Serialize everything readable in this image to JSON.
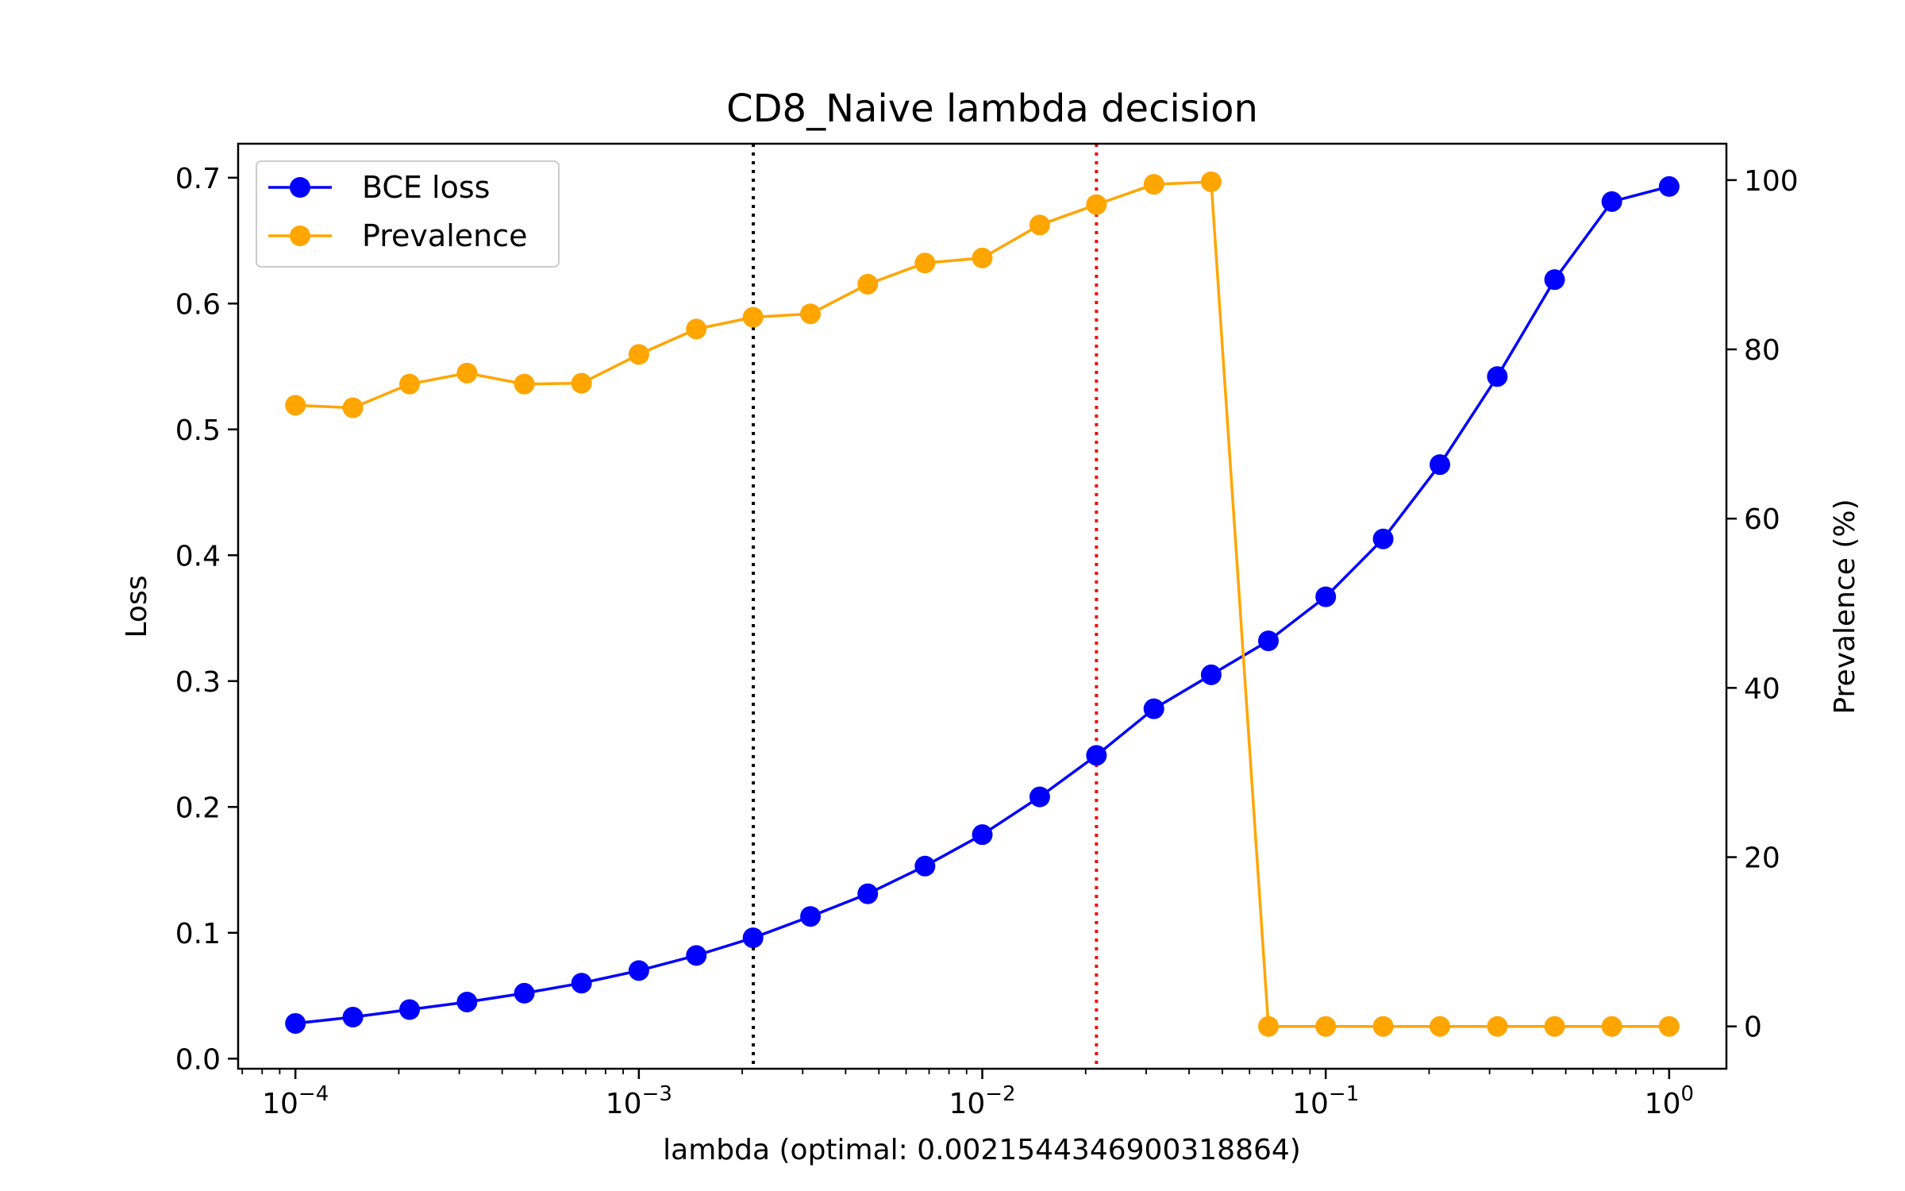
{
  "chart_data": {
    "type": "line",
    "title": "CD8_Naive lambda decision",
    "xlabel": "lambda (optimal: 0.0021544346900318864)",
    "ylabel_left": "Loss",
    "ylabel_right": "Prevalence (%)",
    "xscale": "log",
    "xlim": [
      6.81e-05,
      1.468
    ],
    "ylim_left": [
      -0.008,
      0.727
    ],
    "ylim_right": [
      -5,
      104.3
    ],
    "x_ticks": [
      {
        "value": 0.0001,
        "base": "10",
        "exp": "−4"
      },
      {
        "value": 0.001,
        "base": "10",
        "exp": "−3"
      },
      {
        "value": 0.01,
        "base": "10",
        "exp": "−2"
      },
      {
        "value": 0.1,
        "base": "10",
        "exp": "−1"
      },
      {
        "value": 1,
        "base": "10",
        "exp": "0"
      }
    ],
    "y_left_ticks": [
      {
        "value": 0.0,
        "label": "0.0"
      },
      {
        "value": 0.1,
        "label": "0.1"
      },
      {
        "value": 0.2,
        "label": "0.2"
      },
      {
        "value": 0.3,
        "label": "0.3"
      },
      {
        "value": 0.4,
        "label": "0.4"
      },
      {
        "value": 0.5,
        "label": "0.5"
      },
      {
        "value": 0.6,
        "label": "0.6"
      },
      {
        "value": 0.7,
        "label": "0.7"
      }
    ],
    "y_right_ticks": [
      {
        "value": 0,
        "label": "0"
      },
      {
        "value": 20,
        "label": "20"
      },
      {
        "value": 40,
        "label": "40"
      },
      {
        "value": 60,
        "label": "60"
      },
      {
        "value": 80,
        "label": "80"
      },
      {
        "value": 100,
        "label": "100"
      }
    ],
    "x": [
      0.0001,
      0.000147,
      0.000215,
      0.000316,
      0.000464,
      0.000681,
      0.001,
      0.00147,
      0.00215,
      0.00316,
      0.00464,
      0.00681,
      0.01,
      0.0147,
      0.0215,
      0.0316,
      0.0464,
      0.0681,
      0.1,
      0.147,
      0.215,
      0.316,
      0.464,
      0.681,
      1.0
    ],
    "series": [
      {
        "name": "BCE loss",
        "axis": "left",
        "color": "#0000ff",
        "values": [
          0.028,
          0.033,
          0.039,
          0.045,
          0.052,
          0.06,
          0.07,
          0.082,
          0.096,
          0.113,
          0.131,
          0.153,
          0.178,
          0.208,
          0.241,
          0.278,
          0.305,
          0.332,
          0.367,
          0.413,
          0.472,
          0.542,
          0.619,
          0.681,
          0.693
        ]
      },
      {
        "name": "Prevalence",
        "axis": "right",
        "color": "#ffa500",
        "values": [
          73.4,
          73.1,
          75.9,
          77.2,
          75.9,
          76.0,
          79.4,
          82.4,
          83.8,
          84.2,
          87.7,
          90.2,
          90.8,
          94.7,
          97.1,
          99.5,
          99.8,
          0,
          0,
          0,
          0,
          0,
          0,
          0,
          0
        ]
      }
    ],
    "vlines": [
      {
        "x": 0.0021544346900318864,
        "color": "#000000",
        "style": "dotted"
      },
      {
        "x": 0.0215,
        "color": "#ff0000",
        "style": "dotted"
      }
    ],
    "legend": "top-left",
    "grid": false
  }
}
